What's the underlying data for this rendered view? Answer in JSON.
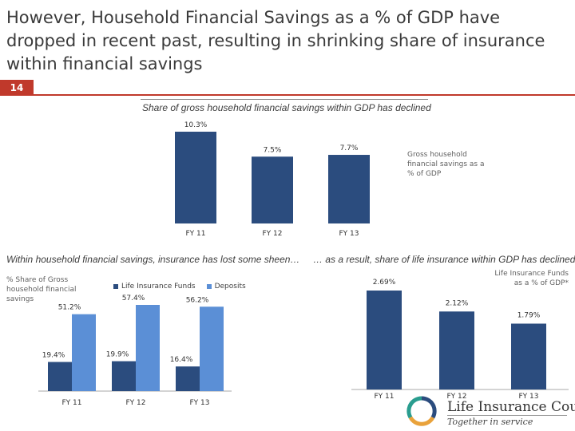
{
  "title": "However, Household Financial Savings as a % of GDP have dropped in recent past, resulting in shrinking share of insurance within financial savings",
  "slide_number": "14",
  "chart_data": [
    {
      "type": "bar",
      "title": "Share of gross household financial savings within GDP has declined",
      "categories": [
        "FY 11",
        "FY 12",
        "FY 13"
      ],
      "series": [
        {
          "name": "Gross household financial savings as a % of GDP",
          "values": [
            10.3,
            7.5,
            7.7
          ],
          "labels": [
            "10.3%",
            "7.5%",
            "7.7%"
          ]
        }
      ],
      "ylim": [
        0,
        10.3
      ],
      "color": "#2b4c7e"
    },
    {
      "type": "bar",
      "title": "Within household financial savings, insurance has lost some sheen…",
      "ylabel": "% Share of Gross household financial savings",
      "categories": [
        "FY 11",
        "FY 12",
        "FY 13"
      ],
      "series": [
        {
          "name": "Life Insurance Funds",
          "values": [
            19.4,
            19.9,
            16.4
          ],
          "labels": [
            "19.4%",
            "19.9%",
            "16.4%"
          ],
          "color": "#2b4c7e"
        },
        {
          "name": "Deposits",
          "values": [
            51.2,
            57.4,
            56.2
          ],
          "labels": [
            "51.2%",
            "57.4%",
            "56.2%"
          ],
          "color": "#5b8fd6"
        }
      ],
      "ylim": [
        0,
        57.4
      ]
    },
    {
      "type": "bar",
      "title": "… as a result, share of life insurance within GDP has declined",
      "categories": [
        "FY 11",
        "FY 12",
        "FY 13"
      ],
      "series": [
        {
          "name": "Life Insurance Funds as a % of GDP*",
          "values": [
            2.69,
            2.12,
            1.79
          ],
          "labels": [
            "2.69%",
            "2.12%",
            "1.79%"
          ]
        }
      ],
      "ylim": [
        0,
        2.69
      ],
      "color": "#2b4c7e"
    }
  ],
  "logo": {
    "name": "Life Insurance Council",
    "tagline": "Together in service"
  }
}
